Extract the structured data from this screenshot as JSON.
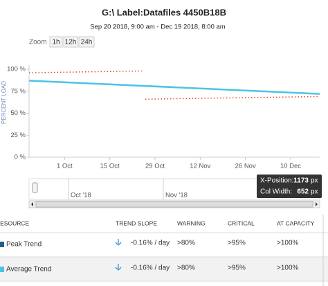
{
  "chart_data": {
    "type": "line",
    "title": "G:\\ Label:Datafiles 4450B18B",
    "subtitle": "Sep 20 2018, 9:00 am - Dec 19 2018, 8:00 am",
    "ylabel": "PERCENT LOAD",
    "xlim": [
      "2018-09-20",
      "2018-12-19"
    ],
    "xticks": [
      {
        "value": "2018-10-01",
        "label": "1 Oct"
      },
      {
        "value": "2018-10-15",
        "label": "15 Oct"
      },
      {
        "value": "2018-10-29",
        "label": "29 Oct"
      },
      {
        "value": "2018-11-12",
        "label": "12 Nov"
      },
      {
        "value": "2018-11-26",
        "label": "26 Nov"
      },
      {
        "value": "2018-12-10",
        "label": "10 Dec"
      }
    ],
    "ylim": [
      0,
      100
    ],
    "yticks": [
      {
        "value": 0,
        "label": "0 %"
      },
      {
        "value": 25,
        "label": "25 %"
      },
      {
        "value": 50,
        "label": "50 %"
      },
      {
        "value": 75,
        "label": "75 %"
      },
      {
        "value": 100,
        "label": "100 %"
      }
    ],
    "grid": false,
    "series": [
      {
        "color": "#e8413a",
        "dashed": true,
        "x": [
          "2018-09-20",
          "2018-10-25",
          "2018-10-25",
          "2018-10-26",
          "2018-12-19"
        ],
        "values": [
          96,
          98,
          null,
          66,
          69
        ]
      },
      {
        "color": "#4cc3e6",
        "dashed": false,
        "x": [
          "2018-09-20",
          "2018-12-19"
        ],
        "values": [
          87,
          72
        ]
      }
    ]
  },
  "zoom": {
    "label": "Zoom",
    "buttons": [
      "1h",
      "12h",
      "24h"
    ]
  },
  "navigator": {
    "labels": [
      "Oct '18",
      "Nov '18"
    ]
  },
  "tooltip": [
    {
      "label": "X-Position:",
      "value": 1173,
      "unit": "px"
    },
    {
      "label": "Col Width:",
      "value": 652,
      "unit": "px"
    }
  ],
  "table": {
    "headers": [
      "RESOURCE",
      "TREND SLOPE",
      "WARNING",
      "CRITICAL",
      "AT CAPACITY"
    ],
    "swatch_colors": [
      "#1f5f8b",
      "#4cc3e6"
    ],
    "rows": [
      [
        "Peak Trend",
        "-0.16% / day",
        ">80%",
        ">95%",
        ">100%"
      ],
      [
        "Average Trend",
        "-0.16% / day",
        ">80%",
        ">95%",
        ">100%"
      ]
    ]
  }
}
